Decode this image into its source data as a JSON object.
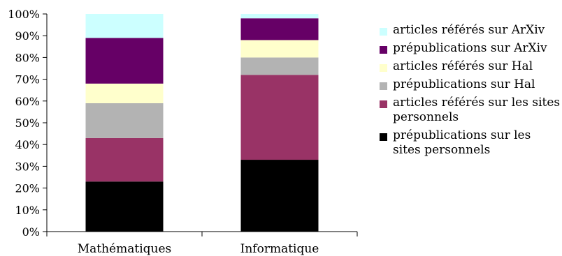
{
  "chart_data": {
    "type": "bar",
    "stacked": true,
    "categories": [
      "Mathématiques",
      "Informatique"
    ],
    "ylim": [
      0,
      100
    ],
    "yticks": [
      "0%",
      "10%",
      "20%",
      "30%",
      "40%",
      "50%",
      "60%",
      "70%",
      "80%",
      "90%",
      "100%"
    ],
    "legend_position": "right",
    "series": [
      {
        "name": "prépublications sur les sites personnels",
        "color": "#000000",
        "values": [
          23,
          33
        ]
      },
      {
        "name": "articles référés sur les sites personnels",
        "color": "#993366",
        "values": [
          20,
          39
        ]
      },
      {
        "name": "prépublications sur Hal",
        "color": "#b3b3b3",
        "values": [
          16,
          8
        ]
      },
      {
        "name": "articles référés sur Hal",
        "color": "#ffffcc",
        "values": [
          9,
          8
        ]
      },
      {
        "name": "prépublications sur ArXiv",
        "color": "#660066",
        "values": [
          21,
          10
        ]
      },
      {
        "name": "articles référés sur ArXiv",
        "color": "#ccffff",
        "values": [
          11,
          2
        ]
      }
    ]
  }
}
